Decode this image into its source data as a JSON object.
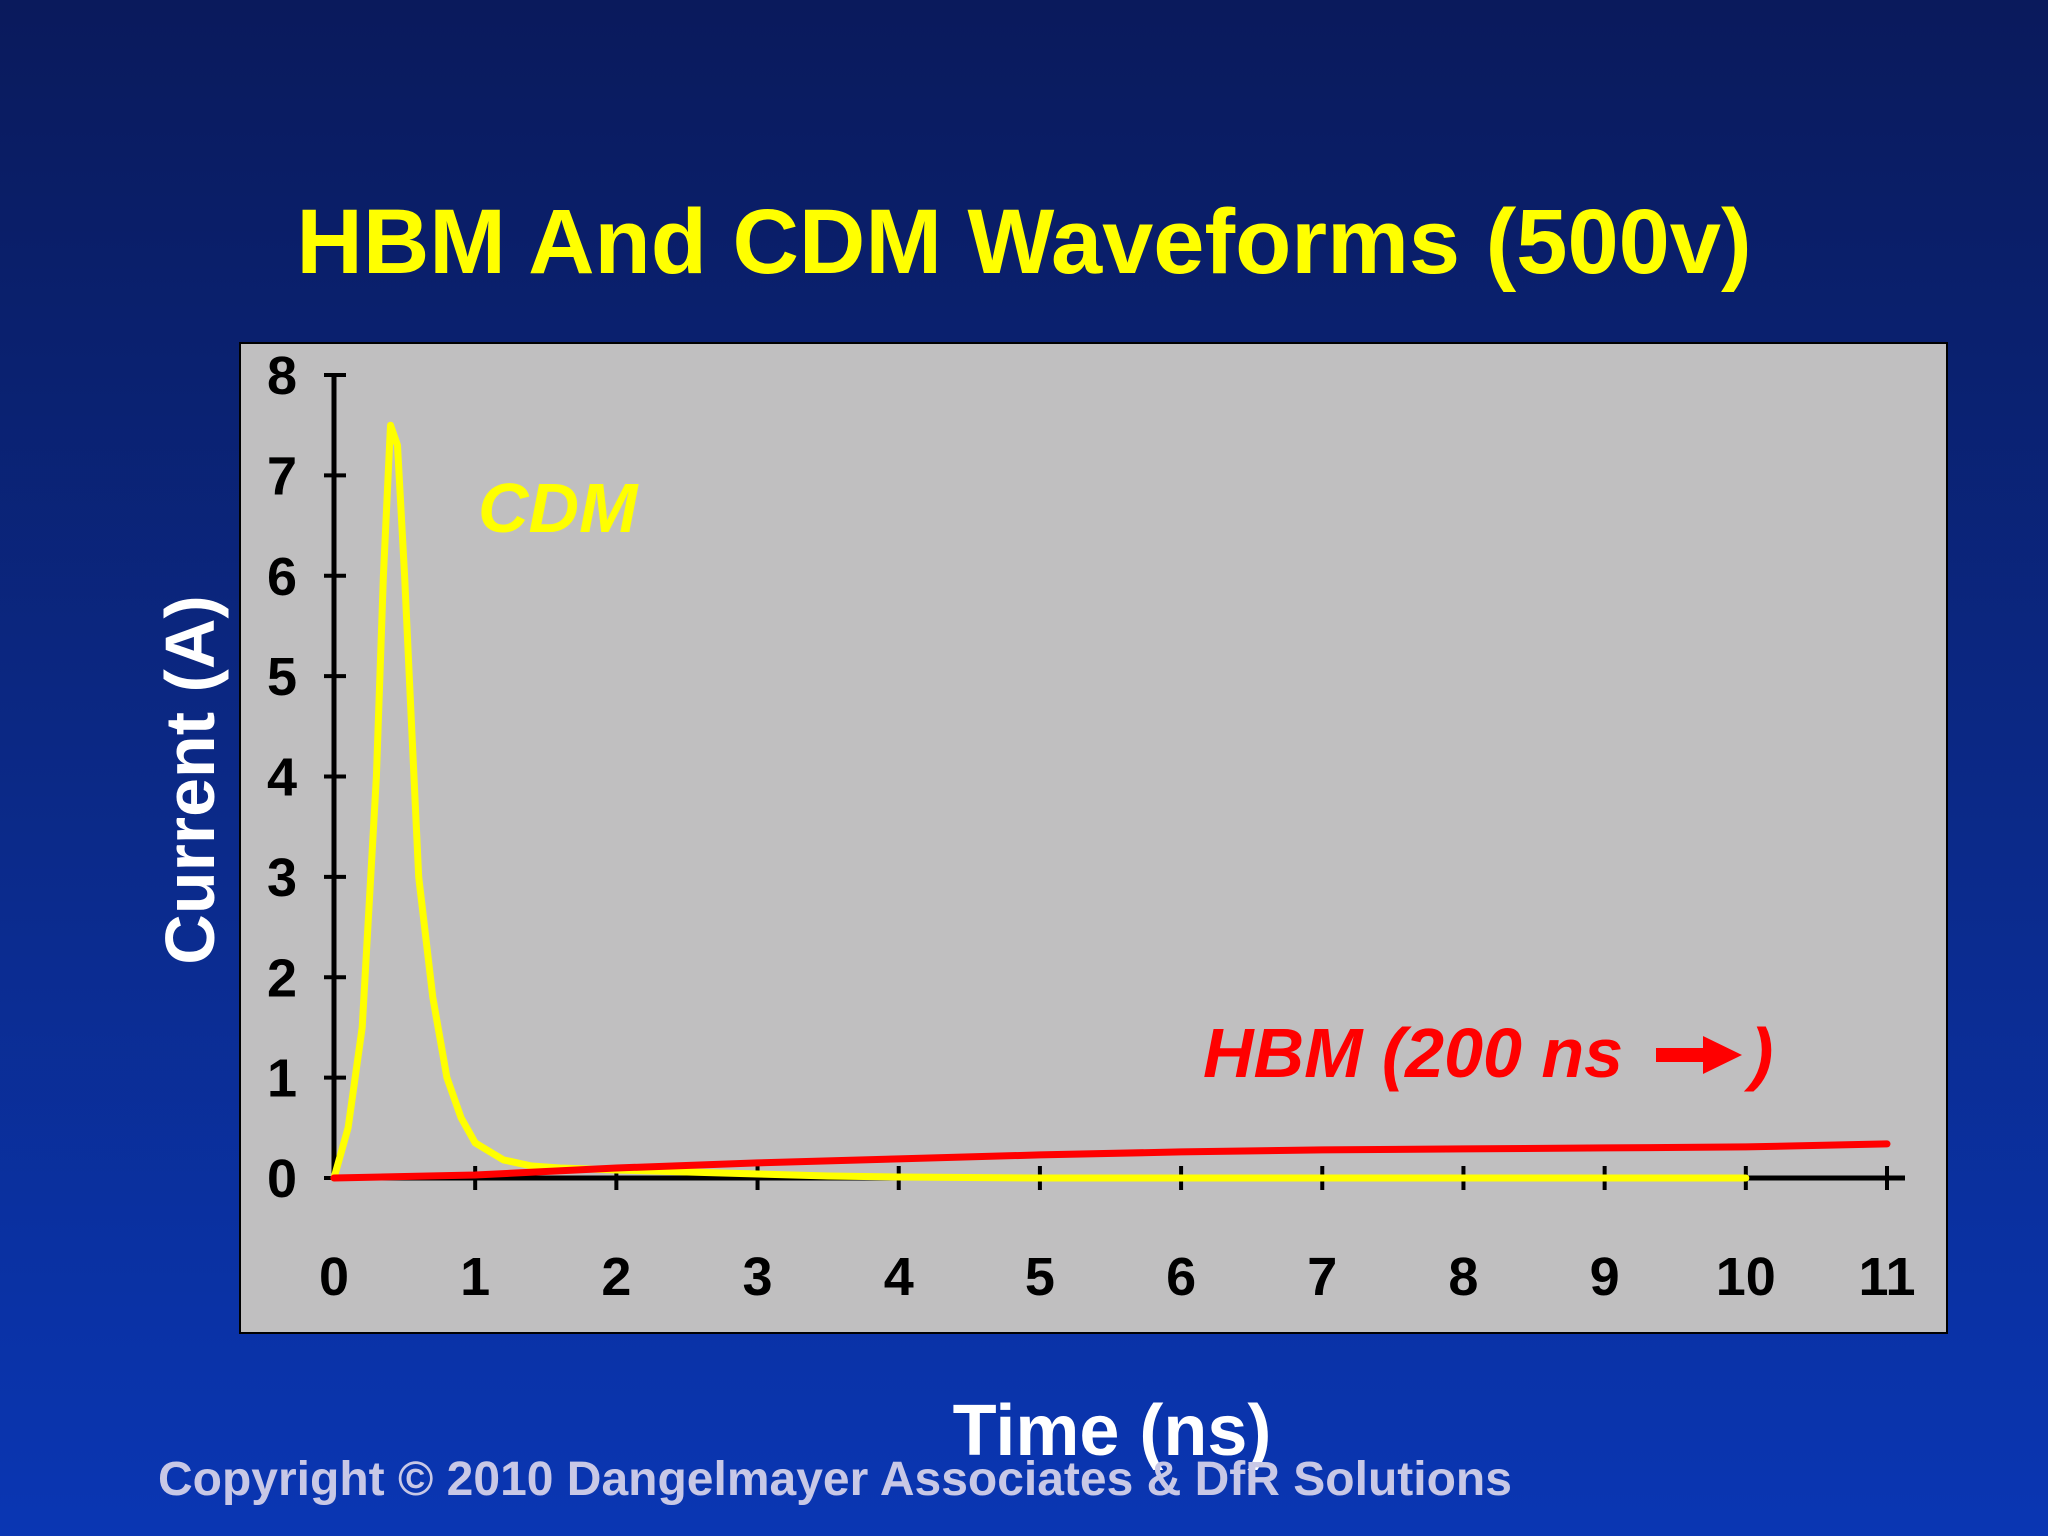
{
  "slide": {
    "title": "HBM And CDM Waveforms (500v)",
    "copyright": "Copyright © 2010 Dangelmayer Associates & DfR Solutions"
  },
  "colors": {
    "background_top": "#0a1a5c",
    "background_bottom": "#0a36b3",
    "title": "#ffff00",
    "plot_area": "#c0bfc0",
    "cdm": "#ffff00",
    "hbm": "#ff0000"
  },
  "chart_data": {
    "type": "line",
    "title": "HBM And CDM Waveforms (500v)",
    "xlabel": "Time (ns)",
    "ylabel": "Current (A)",
    "xlim": [
      0,
      11
    ],
    "ylim": [
      0,
      8
    ],
    "xticks": [
      0,
      1,
      2,
      3,
      4,
      5,
      6,
      7,
      8,
      9,
      10,
      11
    ],
    "yticks": [
      0,
      1,
      2,
      3,
      4,
      5,
      6,
      7,
      8
    ],
    "grid": false,
    "series": [
      {
        "name": "CDM",
        "color": "#ffff00",
        "x": [
          0,
          0.1,
          0.2,
          0.3,
          0.35,
          0.4,
          0.45,
          0.5,
          0.55,
          0.6,
          0.7,
          0.8,
          0.9,
          1.0,
          1.2,
          1.4,
          1.6,
          2.0,
          2.5,
          3.0,
          3.5,
          4.0,
          5,
          6,
          7,
          8,
          9,
          10
        ],
        "y": [
          0,
          0.5,
          1.5,
          4.0,
          6.0,
          7.5,
          7.3,
          6.0,
          4.5,
          3.0,
          1.8,
          1.0,
          0.6,
          0.35,
          0.18,
          0.12,
          0.1,
          0.08,
          0.06,
          0.04,
          0.02,
          0.01,
          0,
          0,
          0,
          0,
          0,
          0
        ]
      },
      {
        "name": "HBM (200 ns",
        "color": "#ff0000",
        "x": [
          0,
          1,
          2,
          3,
          4,
          5,
          6,
          7,
          8,
          9,
          10,
          11
        ],
        "y": [
          0,
          0.03,
          0.1,
          0.15,
          0.19,
          0.23,
          0.26,
          0.28,
          0.29,
          0.3,
          0.31,
          0.34
        ]
      }
    ],
    "annotations": {
      "cdm_label": "CDM",
      "hbm_label": "HBM (200 ns",
      "hbm_label_close": ")",
      "hbm_arrow_icon": "arrow-right-icon"
    }
  }
}
